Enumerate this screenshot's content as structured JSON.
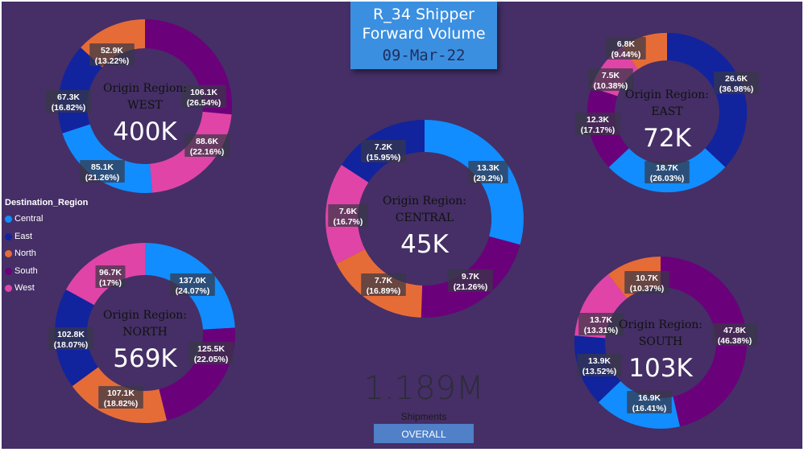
{
  "header": {
    "title_line1": "R_34 Shipper",
    "title_line2": "Forward Volume",
    "date": "09-Mar-22"
  },
  "legend": {
    "title": "Destination_Region",
    "items": [
      {
        "label": "Central",
        "color": "#118dff"
      },
      {
        "label": "East",
        "color": "#12239e"
      },
      {
        "label": "North",
        "color": "#e66c37"
      },
      {
        "label": "South",
        "color": "#6b007b"
      },
      {
        "label": "West",
        "color": "#e044a7"
      }
    ]
  },
  "summary": {
    "total": "1.189M",
    "total_label": "Shipments",
    "overall_button": "OVERALL"
  },
  "chart_data": [
    {
      "type": "pie",
      "title": "WEST",
      "origin_label": "Origin Region:",
      "total_label": "400K",
      "slices": [
        {
          "name": "South",
          "label": "106.1K",
          "percent": "(26.54%)",
          "value": 106.1
        },
        {
          "name": "West",
          "label": "88.6K",
          "percent": "(22.16%)",
          "value": 88.6
        },
        {
          "name": "Central",
          "label": "85.1K",
          "percent": "(21.26%)",
          "value": 85.1
        },
        {
          "name": "East",
          "label": "67.3K",
          "percent": "(16.82%)",
          "value": 67.3
        },
        {
          "name": "North",
          "label": "52.9K",
          "percent": "(13.22%)",
          "value": 52.9
        }
      ]
    },
    {
      "type": "pie",
      "title": "EAST",
      "origin_label": "Origin Region:",
      "total_label": "72K",
      "slices": [
        {
          "name": "East",
          "label": "26.6K",
          "percent": "(36.98%)",
          "value": 26.6
        },
        {
          "name": "Central",
          "label": "18.7K",
          "percent": "(26.03%)",
          "value": 18.7
        },
        {
          "name": "South",
          "label": "12.3K",
          "percent": "(17.17%)",
          "value": 12.3
        },
        {
          "name": "West",
          "label": "7.5K",
          "percent": "(10.38%)",
          "value": 7.5
        },
        {
          "name": "North",
          "label": "6.8K",
          "percent": "(9.44%)",
          "value": 6.8
        }
      ]
    },
    {
      "type": "pie",
      "title": "CENTRAL",
      "origin_label": "Origin Region:",
      "total_label": "45K",
      "slices": [
        {
          "name": "Central",
          "label": "13.3K",
          "percent": "(29.2%)",
          "value": 13.3
        },
        {
          "name": "South",
          "label": "9.7K",
          "percent": "(21.26%)",
          "value": 9.7
        },
        {
          "name": "North",
          "label": "7.7K",
          "percent": "(16.89%)",
          "value": 7.7
        },
        {
          "name": "West",
          "label": "7.6K",
          "percent": "(16.7%)",
          "value": 7.6
        },
        {
          "name": "East",
          "label": "7.2K",
          "percent": "(15.95%)",
          "value": 7.2
        }
      ]
    },
    {
      "type": "pie",
      "title": "NORTH",
      "origin_label": "Origin Region:",
      "total_label": "569K",
      "slices": [
        {
          "name": "Central",
          "label": "137.0K",
          "percent": "(24.07%)",
          "value": 137.0
        },
        {
          "name": "South",
          "label": "125.5K",
          "percent": "(22.05%)",
          "value": 125.5
        },
        {
          "name": "North",
          "label": "107.1K",
          "percent": "(18.82%)",
          "value": 107.1
        },
        {
          "name": "East",
          "label": "102.8K",
          "percent": "(18.07%)",
          "value": 102.8
        },
        {
          "name": "West",
          "label": "96.7K",
          "percent": "(17%)",
          "value": 96.7
        }
      ]
    },
    {
      "type": "pie",
      "title": "SOUTH",
      "origin_label": "Origin Region:",
      "total_label": "103K",
      "slices": [
        {
          "name": "South",
          "label": "47.8K",
          "percent": "(46.38%)",
          "value": 47.8
        },
        {
          "name": "Central",
          "label": "16.9K",
          "percent": "(16.41%)",
          "value": 16.9
        },
        {
          "name": "East",
          "label": "13.9K",
          "percent": "(13.52%)",
          "value": 13.9
        },
        {
          "name": "West",
          "label": "13.7K",
          "percent": "(13.31%)",
          "value": 13.7
        },
        {
          "name": "North",
          "label": "10.7K",
          "percent": "(10.37%)",
          "value": 10.7
        }
      ]
    }
  ]
}
